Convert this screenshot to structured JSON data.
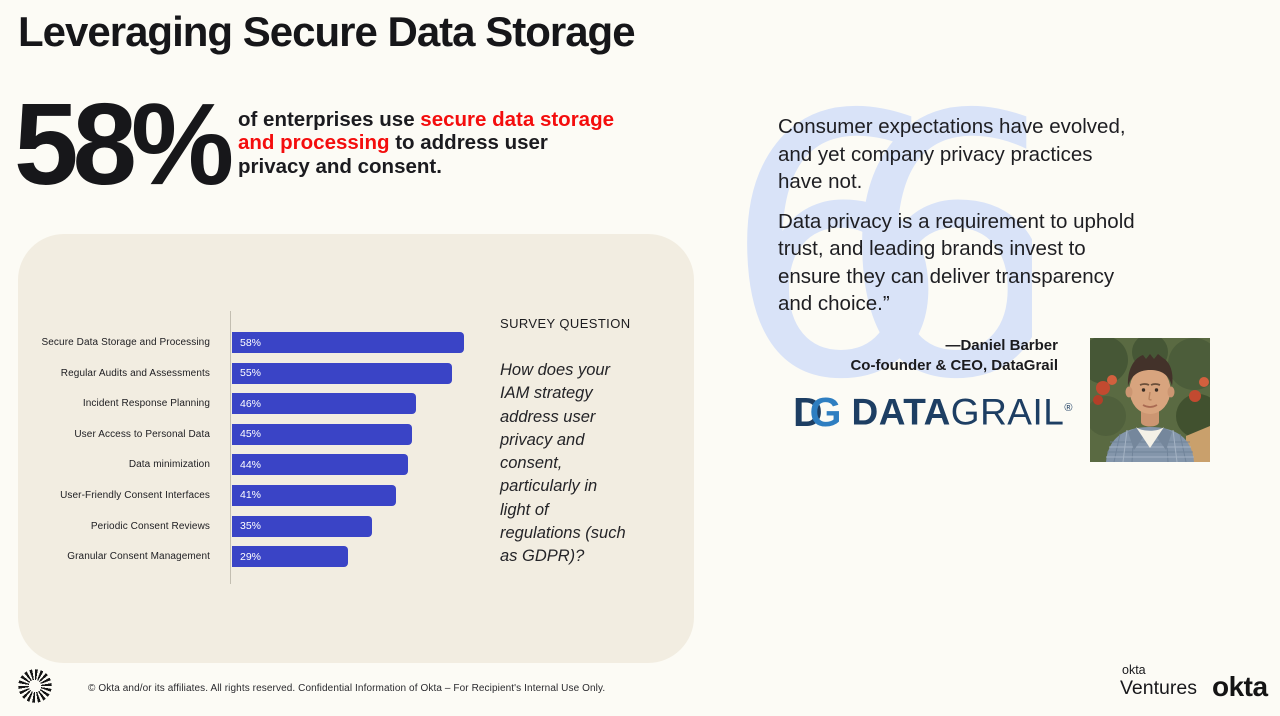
{
  "slide_title": "Leveraging Secure Data Storage",
  "stat": {
    "value": "58%",
    "text_before": "of enterprises use ",
    "text_highlight": "secure data storage and processing",
    "text_after": " to address user privacy and consent.",
    "highlight_color": "#F40D0D"
  },
  "chart_data": {
    "type": "bar",
    "orientation": "horizontal",
    "title": "",
    "categories": [
      "Secure Data Storage and Processing",
      "Regular Audits and Assessments",
      "Incident Response Planning",
      "User Access to Personal Data",
      "Data minimization",
      "User-Friendly Consent Interfaces",
      "Periodic Consent Reviews",
      "Granular Consent Management"
    ],
    "values": [
      58,
      55,
      46,
      45,
      44,
      41,
      35,
      29
    ],
    "value_labels": [
      "58%",
      "55%",
      "46%",
      "45%",
      "44%",
      "41%",
      "35%",
      "29%"
    ],
    "xlim": [
      0,
      60
    ],
    "grid": false,
    "legend": false,
    "bar_color": "#3A44C6",
    "panel_color": "#F2EDE1"
  },
  "survey": {
    "heading": "SURVEY QUESTION",
    "question": "How does your\nIAM strategy\naddress user\nprivacy and\nconsent,\nparticularly in\nlight of\nregulations (such\nas GDPR)?"
  },
  "quote": {
    "paragraph1": "Consumer expectations have evolved,\nand yet company privacy practices\nhave not.",
    "paragraph2": "Data privacy is a requirement to uphold\ntrust, and leading brands invest to\nensure they can deliver transparency\nand choice.”",
    "attribution_name": "—Daniel Barber",
    "attribution_title": "Co-founder & CEO, DataGrail",
    "mark_color": "#D9E3F8"
  },
  "datagrail_logo": {
    "monogram_d": "D",
    "monogram_g": "G",
    "word_bold": "DATA",
    "word_light": "GRAIL",
    "registered": "®",
    "navy": "#1D3E63",
    "blue": "#2E7EC1"
  },
  "footer": {
    "copyright": "© Okta and/or its affiliates. All rights reserved. Confidential Information of Okta – For Recipient's Internal Use Only.",
    "okta_ventures_line1": "okta",
    "okta_ventures_line2": "Ventures",
    "okta_wordmark": "okta"
  }
}
